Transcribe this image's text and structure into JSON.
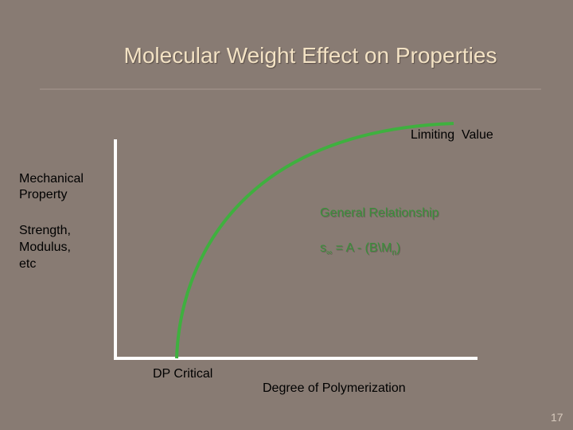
{
  "header": {
    "title": "Molecular Weight Effect on Properties"
  },
  "labels": {
    "limiting": "Limiting  Value",
    "y_axis": [
      "Mechanical",
      "Property"
    ],
    "y_examples": [
      "Strength,",
      "Modulus,",
      "etc"
    ],
    "relationship_title": "General Relationship",
    "formula": {
      "symbol": "s",
      "symbol_sub": "∞",
      "middle": " = A - (B\\M",
      "m_sub": "n",
      "end": ")"
    },
    "x_critical": "DP Critical",
    "x_axis": "Degree of Polymerization"
  },
  "footer": {
    "page_number": "17"
  }
}
